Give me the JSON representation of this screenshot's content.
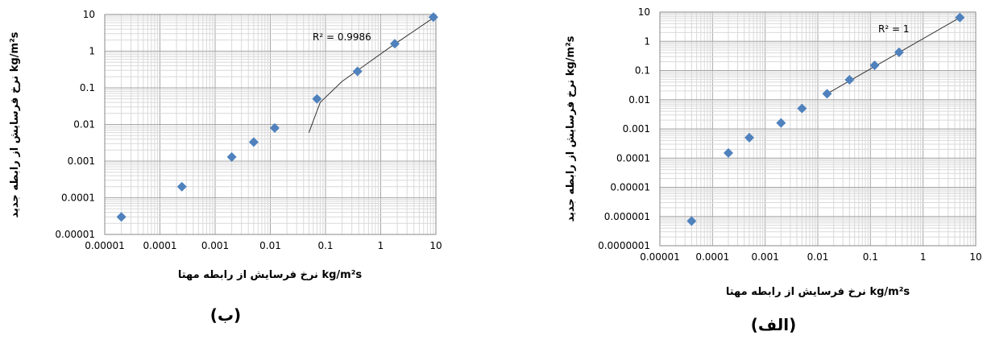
{
  "chart_data": [
    {
      "type": "scatter",
      "panel_label": "(ب)",
      "xlabel": "نرخ فرسایش از رابطه مهتا kg/m²s",
      "ylabel": "نرخ فرسایش از رابطه جدید kg/m²s",
      "x_scale": "log",
      "y_scale": "log",
      "xlim": [
        1e-05,
        10
      ],
      "ylim": [
        1e-05,
        10
      ],
      "x_ticks": [
        "0.00001",
        "0.0001",
        "0.001",
        "0.01",
        "0.1",
        "1",
        "10"
      ],
      "y_ticks": [
        "0.00001",
        "0.0001",
        "0.001",
        "0.01",
        "0.1",
        "1",
        "10"
      ],
      "grid": true,
      "annotation": "R² = 0.9986",
      "series": [
        {
          "color": "#4f81bd",
          "points": [
            {
              "x": 2e-05,
              "y": 3e-05
            },
            {
              "x": 0.00025,
              "y": 0.0002
            },
            {
              "x": 0.002,
              "y": 0.0013
            },
            {
              "x": 0.005,
              "y": 0.0033
            },
            {
              "x": 0.012,
              "y": 0.008
            },
            {
              "x": 0.07,
              "y": 0.05
            },
            {
              "x": 0.38,
              "y": 0.28
            },
            {
              "x": 1.8,
              "y": 1.6
            },
            {
              "x": 9,
              "y": 8.5
            }
          ]
        }
      ],
      "trendline": [
        {
          "x": 0.05,
          "y": 0.006
        },
        {
          "x": 0.08,
          "y": 0.04
        },
        {
          "x": 0.2,
          "y": 0.15
        },
        {
          "x": 0.5,
          "y": 0.4
        },
        {
          "x": 1.5,
          "y": 1.3
        },
        {
          "x": 10,
          "y": 9
        }
      ]
    },
    {
      "type": "scatter",
      "panel_label": "(الف)",
      "xlabel": "نرخ فرسایش از رابطه مهتا kg/m²s",
      "ylabel": "نرخ فرسایش از رابطه جدید kg/m²s",
      "x_scale": "log",
      "y_scale": "log",
      "xlim": [
        1e-05,
        10
      ],
      "ylim": [
        1e-07,
        10
      ],
      "x_ticks": [
        "0.00001",
        "0.0001",
        "0.001",
        "0.01",
        "0.1",
        "1",
        "10"
      ],
      "y_ticks": [
        "0.0000001",
        "0.000001",
        "0.00001",
        "0.0001",
        "0.001",
        "0.01",
        "0.1",
        "1",
        "10"
      ],
      "grid": true,
      "annotation": "R² = 1",
      "series": [
        {
          "color": "#4f81bd",
          "points": [
            {
              "x": 4e-05,
              "y": 7e-07
            },
            {
              "x": 0.0002,
              "y": 0.00015
            },
            {
              "x": 0.0005,
              "y": 0.0005
            },
            {
              "x": 0.002,
              "y": 0.0016
            },
            {
              "x": 0.005,
              "y": 0.005
            },
            {
              "x": 0.015,
              "y": 0.016
            },
            {
              "x": 0.04,
              "y": 0.048
            },
            {
              "x": 0.12,
              "y": 0.15
            },
            {
              "x": 0.35,
              "y": 0.42
            },
            {
              "x": 5,
              "y": 6.5
            }
          ]
        }
      ],
      "trendline": [
        {
          "x": 0.015,
          "y": 0.016
        },
        {
          "x": 5,
          "y": 6.5
        }
      ]
    }
  ]
}
